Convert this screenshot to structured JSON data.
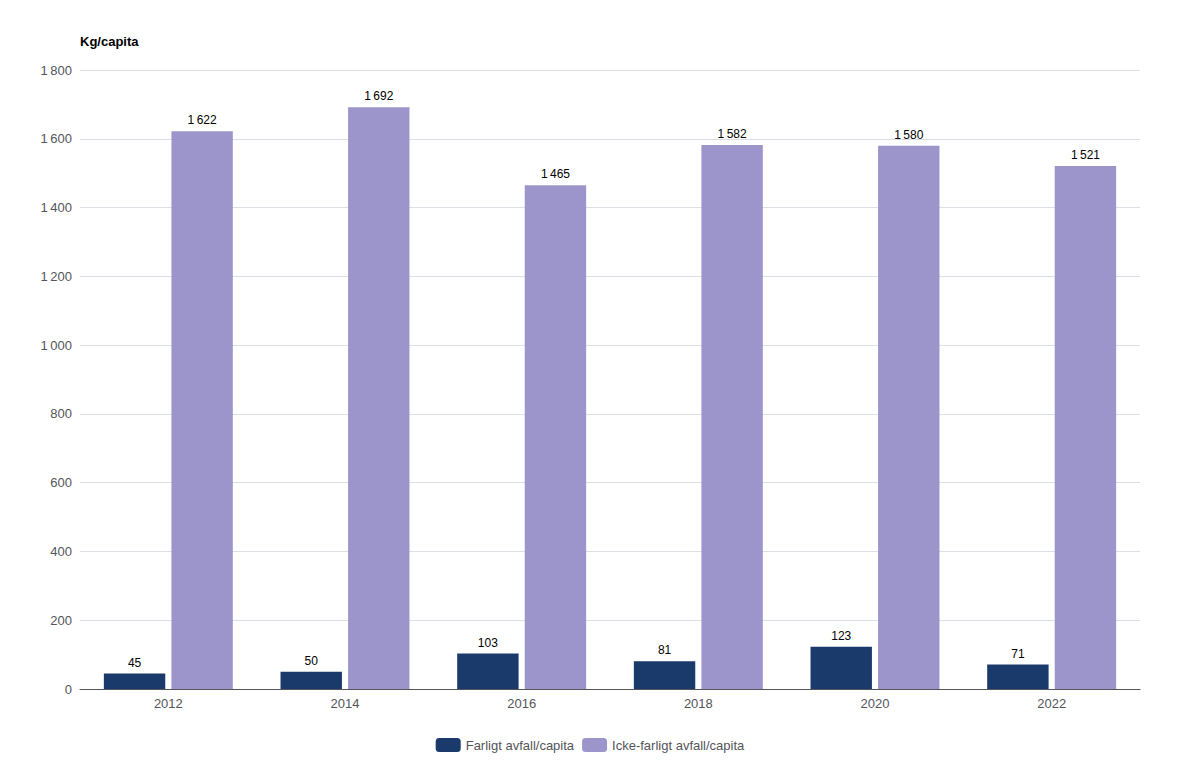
{
  "chart_data": {
    "type": "bar",
    "ylabel": "Kg/capita",
    "categories": [
      "2012",
      "2014",
      "2016",
      "2018",
      "2020",
      "2022"
    ],
    "series": [
      {
        "name": "Farligt avfall/capita",
        "color": "#1a3a6b",
        "values": [
          45,
          50,
          103,
          81,
          123,
          71
        ]
      },
      {
        "name": "Icke-farligt avfall/capita",
        "color": "#9b95cc",
        "values": [
          1622,
          1692,
          1465,
          1582,
          1580,
          1521
        ],
        "value_labels": [
          "1 622",
          "1 692",
          "1 465",
          "1 582",
          "1 580",
          "1 521"
        ]
      }
    ],
    "ylim": [
      0,
      1800
    ],
    "yticks": [
      0,
      200,
      400,
      600,
      800,
      {
        "value": 1000,
        "label": "1 000"
      },
      {
        "value": 1200,
        "label": "1 200"
      },
      {
        "value": 1400,
        "label": "1 400"
      },
      {
        "value": 1600,
        "label": "1 600"
      },
      {
        "value": 1800,
        "label": "1 800"
      }
    ],
    "grid": true,
    "legend": "bottom",
    "data_labels": true
  }
}
